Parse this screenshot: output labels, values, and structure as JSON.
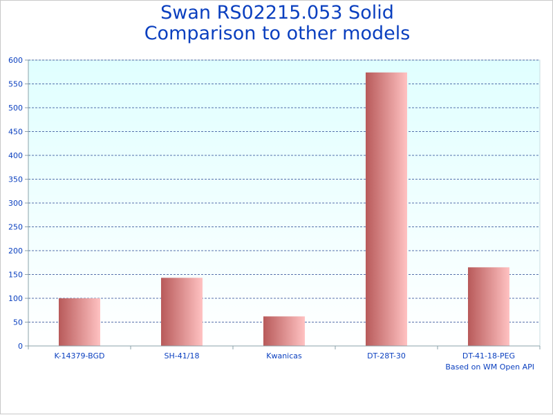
{
  "chart_data": {
    "type": "bar",
    "title": "Swan RS02215.053 Solid",
    "subtitle": "Comparison to other models",
    "categories": [
      "K-14379-BGD",
      "SH-41/18",
      "Kwanicas",
      "DT-28T-30",
      "DT-41-18-PEG"
    ],
    "values": [
      100,
      143,
      62,
      574,
      165
    ],
    "ylim": [
      0,
      600
    ],
    "yticks": [
      0,
      50,
      100,
      150,
      200,
      250,
      300,
      350,
      400,
      450,
      500,
      550,
      600
    ],
    "grid": true,
    "legend": "none",
    "credit": "Based on WM Open API"
  },
  "colors": {
    "title": "#0a3fbf",
    "plot_background": "#e0ffff",
    "grid": "#1f3f8f",
    "bar_dark": "#b85a5a",
    "bar_light": "#ffc2c2"
  }
}
